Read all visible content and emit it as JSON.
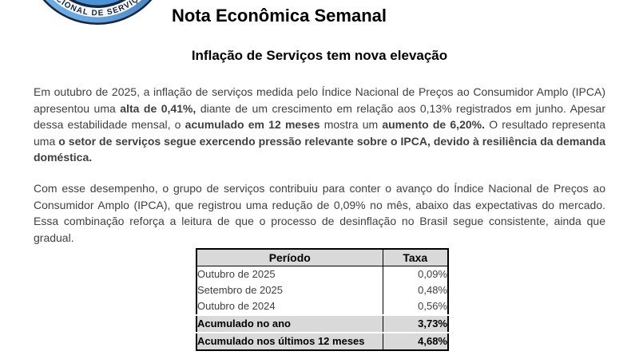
{
  "masthead": {
    "logo_arc_text": "NACIONAL DE SERVIÇOS",
    "title": "Nota Econômica Semanal"
  },
  "headline": "Inflação de Serviços tem nova elevação",
  "body": {
    "paragraph1": [
      {
        "t": "Em outubro de 2025, a inflação de serviços medida pelo Índice Nacional de Preços ao Consumidor Amplo (IPCA) apresentou uma ",
        "b": false
      },
      {
        "t": "alta de 0,41%,",
        "b": true
      },
      {
        "t": " diante de um crescimento em relação aos 0,13% registrados em junho. Apesar dessa estabilidade mensal, o ",
        "b": false
      },
      {
        "t": "acumulado em 12 meses",
        "b": true
      },
      {
        "t": " mostra um ",
        "b": false
      },
      {
        "t": "aumento de 6,20%.",
        "b": true
      },
      {
        "t": " O resultado representa uma ",
        "b": false
      },
      {
        "t": "o setor de serviços segue exercendo pressão relevante sobre o IPCA, devido à resiliência da demanda doméstica.",
        "b": true
      }
    ],
    "paragraph2": [
      {
        "t": "Com esse desempenho, o grupo de serviços contribuiu para conter o avanço do Índice Nacional de Preços ao Consumidor Amplo (IPCA), que registrou uma redução de 0,09% no mês, abaixo das expectativas do mercado. Essa combinação reforça a leitura de que o processo de desinflação no Brasil segue consistente, ainda que gradual.",
        "b": false
      }
    ]
  },
  "table": {
    "columns": {
      "period": "Período",
      "rate": "Taxa"
    },
    "rows": [
      {
        "period": "Outubro de 2025",
        "rate": "0,09%",
        "emphasis": false
      },
      {
        "period": "Setembro de 2025",
        "rate": "0,48%",
        "emphasis": false
      },
      {
        "period": "Outubro de 2024",
        "rate": "0,56%",
        "emphasis": false
      },
      {
        "period": "Acumulado no ano",
        "rate": "3,73%",
        "emphasis": true
      },
      {
        "period": "Acumulado nos últimos 12 meses",
        "rate": "4,68%",
        "emphasis": true
      }
    ]
  },
  "colors": {
    "body_text": "#3f3f3f",
    "heading_text": "#000000",
    "table_header_bg": "#d9d9d9",
    "table_emphasis_bg": "#d9d9d9",
    "table_border": "#000000",
    "logo_navy": "#132644",
    "logo_blue_light": "#7dbef2",
    "logo_blue_dark": "#1c5290"
  }
}
